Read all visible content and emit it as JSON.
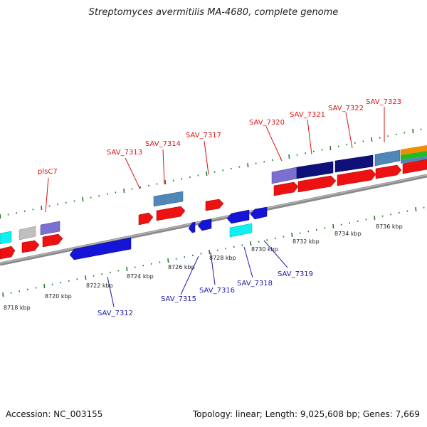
{
  "title": "Streptomyces avermitilis MA-4680, complete genome",
  "footer": {
    "accession": "Accession: NC_003155",
    "stats": "Topology: linear; Length: 9,025,608 bp; Genes: 7,669"
  },
  "kbp_ticks": [
    "8718 kbp",
    "8720 kbp",
    "8722 kbp",
    "8724 kbp",
    "8726 kbp",
    "8728 kbp",
    "8730 kbp",
    "8732 kbp",
    "8734 kbp",
    "8736 kbp"
  ],
  "top_labels": [
    "plsC7",
    "SAV_7313",
    "SAV_7314",
    "SAV_7317",
    "SAV_7320",
    "SAV_7321",
    "SAV_7322",
    "SAV_7323"
  ],
  "bottom_labels": [
    "SAV_7312",
    "SAV_7315",
    "SAV_7316",
    "SAV_7318",
    "SAV_7319"
  ],
  "colors": {
    "red": "#ee1111",
    "blue": "#1515d8",
    "navy": "#10107a",
    "slate_purple": "#7b6fd0",
    "steel_blue": "#4f87b8",
    "cyan": "#10f0f0",
    "grey": "#bfbfbf",
    "tick_green": "#2a7a2a",
    "backbone": "#8a8a8a"
  }
}
